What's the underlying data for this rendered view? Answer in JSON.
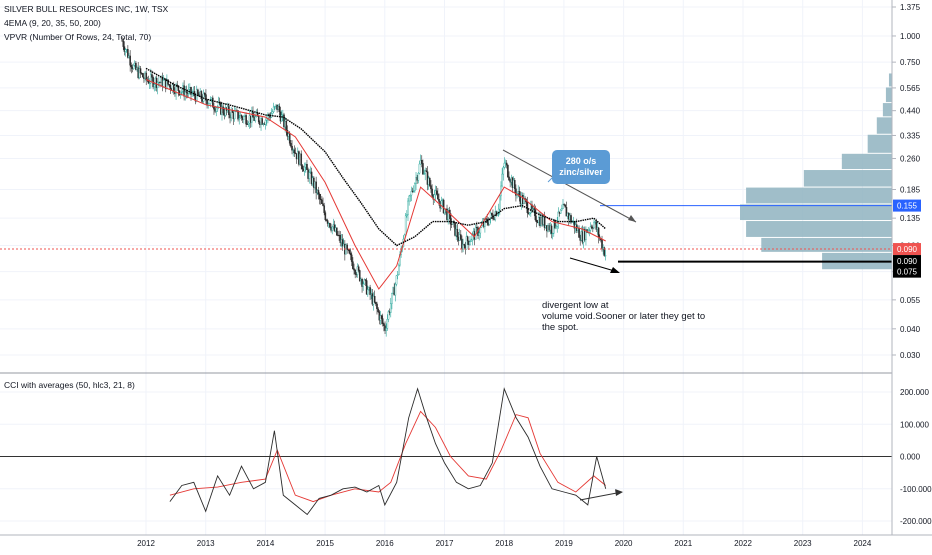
{
  "legend": {
    "symbol": "SILVER BULL RESOURCES INC, 1W, TSX",
    "ema": "4EMA (9, 20, 35, 50, 200)",
    "vpvr": "VPVR (Number Of Rows, 24, Total, 70)",
    "cci": "CCI with averages (50, hlc3, 21, 8)"
  },
  "annotations": {
    "callout_line1": "280 o/s",
    "callout_line2": "zinc/silver",
    "note_line1": "divergent low at",
    "note_line2": "volume void.Sooner or later they get to",
    "note_line3": "the spot."
  },
  "colors": {
    "background": "#ffffff",
    "price_up": "#26a69a",
    "price_down": "#2b2b2b",
    "ema_red": "#e53935",
    "ema_black": "#000000",
    "vpvr": "#8fb3bf",
    "blue_level": "#2962ff",
    "red_level": "#ef5350",
    "callout": "#5b9bd5"
  },
  "chart_data": [
    {
      "type": "candlestick",
      "title": "SILVER BULL RESOURCES INC, 1W, TSX",
      "scale": "log",
      "ylim": [
        0.028,
        1.4
      ],
      "y_ticks": [
        "1.375",
        "1.000",
        "0.750",
        "0.565",
        "0.440",
        "0.335",
        "0.260",
        "0.185",
        "0.135",
        "0.100",
        "0.075",
        "0.055",
        "0.040",
        "0.030"
      ],
      "x_ticks": [
        "2012",
        "2013",
        "2014",
        "2015",
        "2016",
        "2017",
        "2018",
        "2019",
        "2020",
        "2021",
        "2022",
        "2023",
        "2024"
      ],
      "series_approx": {
        "x": [
          2011.6,
          2011.8,
          2012.0,
          2012.3,
          2012.6,
          2013.0,
          2013.3,
          2013.6,
          2014.0,
          2014.2,
          2014.5,
          2014.8,
          2015.0,
          2015.3,
          2015.6,
          2015.8,
          2016.0,
          2016.2,
          2016.4,
          2016.6,
          2016.8,
          2017.0,
          2017.3,
          2017.6,
          2017.9,
          2018.0,
          2018.2,
          2018.5,
          2018.8,
          2019.0,
          2019.3,
          2019.5,
          2019.7
        ],
        "y": [
          0.95,
          0.7,
          0.62,
          0.6,
          0.55,
          0.5,
          0.44,
          0.41,
          0.4,
          0.46,
          0.28,
          0.2,
          0.14,
          0.1,
          0.07,
          0.055,
          0.04,
          0.07,
          0.16,
          0.25,
          0.18,
          0.15,
          0.1,
          0.12,
          0.15,
          0.25,
          0.18,
          0.14,
          0.12,
          0.15,
          0.11,
          0.13,
          0.09
        ]
      },
      "ema_200_approx": {
        "x": [
          2012.0,
          2012.5,
          2013.0,
          2013.5,
          2014.0,
          2014.3,
          2014.6,
          2015.0,
          2015.3,
          2015.6,
          2015.9,
          2016.2,
          2016.5,
          2016.8,
          2017.1,
          2017.4,
          2017.7,
          2018.0,
          2018.3,
          2018.6,
          2018.9,
          2019.2,
          2019.5,
          2019.7
        ],
        "y": [
          0.7,
          0.58,
          0.5,
          0.46,
          0.42,
          0.41,
          0.36,
          0.28,
          0.21,
          0.16,
          0.12,
          0.1,
          0.11,
          0.13,
          0.13,
          0.125,
          0.13,
          0.15,
          0.155,
          0.14,
          0.13,
          0.13,
          0.135,
          0.12
        ]
      },
      "ema_red_approx": {
        "x": [
          2012.0,
          2013.0,
          2014.0,
          2014.5,
          2015.0,
          2015.5,
          2015.9,
          2016.2,
          2016.6,
          2017.0,
          2017.5,
          2018.0,
          2018.3,
          2018.8,
          2019.3,
          2019.7
        ],
        "y": [
          0.62,
          0.47,
          0.41,
          0.33,
          0.2,
          0.1,
          0.062,
          0.08,
          0.19,
          0.15,
          0.11,
          0.19,
          0.17,
          0.13,
          0.12,
          0.105
        ]
      },
      "levels": [
        {
          "price": 0.155,
          "label": "0.155",
          "color": "#2962ff"
        },
        {
          "price": 0.09,
          "label": "0.090",
          "color": "#ef5350"
        },
        {
          "price": 0.09,
          "label": "0.090",
          "color": "#000000"
        },
        {
          "price": 0.075,
          "label": "0.075",
          "color": "#000000"
        }
      ],
      "vpvr_approx": {
        "price": [
          0.62,
          0.52,
          0.44,
          0.38,
          0.3,
          0.25,
          0.21,
          0.17,
          0.145,
          0.118,
          0.1,
          0.085
        ],
        "relative_volume": [
          0.02,
          0.04,
          0.06,
          0.1,
          0.16,
          0.33,
          0.58,
          0.96,
          1.0,
          0.96,
          0.86,
          0.46
        ]
      }
    },
    {
      "type": "line",
      "title": "CCI with averages (50, hlc3, 21, 8)",
      "ylim": [
        -230,
        230
      ],
      "y_ticks": [
        "200.000",
        "100.000",
        "0.000",
        "-100.000",
        "-200.000"
      ],
      "series": [
        {
          "x": [
            2012.4,
            2012.6,
            2012.8,
            2013.0,
            2013.2,
            2013.4,
            2013.6,
            2013.8,
            2014.0,
            2014.15,
            2014.3,
            2014.5,
            2014.7,
            2014.9,
            2015.1,
            2015.3,
            2015.5,
            2015.7,
            2015.9,
            2016.0,
            2016.2,
            2016.4,
            2016.55,
            2016.7,
            2016.85,
            2017.0,
            2017.2,
            2017.4,
            2017.6,
            2017.8,
            2018.0,
            2018.2,
            2018.4,
            2018.6,
            2018.8,
            2019.0,
            2019.2,
            2019.4,
            2019.55,
            2019.7
          ],
          "y": [
            -140,
            -90,
            -80,
            -170,
            -60,
            -120,
            -30,
            -100,
            -80,
            80,
            -120,
            -150,
            -180,
            -130,
            -120,
            -100,
            -95,
            -110,
            -90,
            -150,
            -80,
            120,
            210,
            120,
            40,
            -20,
            -80,
            -100,
            -90,
            -20,
            210,
            120,
            60,
            -30,
            -100,
            -110,
            -120,
            -150,
            0,
            -100
          ]
        },
        {
          "x": [
            2012.4,
            2012.8,
            2013.2,
            2013.6,
            2014.0,
            2014.2,
            2014.5,
            2014.8,
            2015.1,
            2015.5,
            2015.9,
            2016.1,
            2016.35,
            2016.6,
            2016.85,
            2017.1,
            2017.4,
            2017.7,
            2017.95,
            2018.2,
            2018.4,
            2018.6,
            2018.9,
            2019.2,
            2019.5,
            2019.7
          ],
          "y": [
            -120,
            -100,
            -95,
            -80,
            -70,
            20,
            -120,
            -140,
            -120,
            -100,
            -110,
            -80,
            40,
            140,
            90,
            0,
            -60,
            -70,
            20,
            130,
            120,
            10,
            -80,
            -110,
            -60,
            -90
          ]
        }
      ]
    }
  ]
}
